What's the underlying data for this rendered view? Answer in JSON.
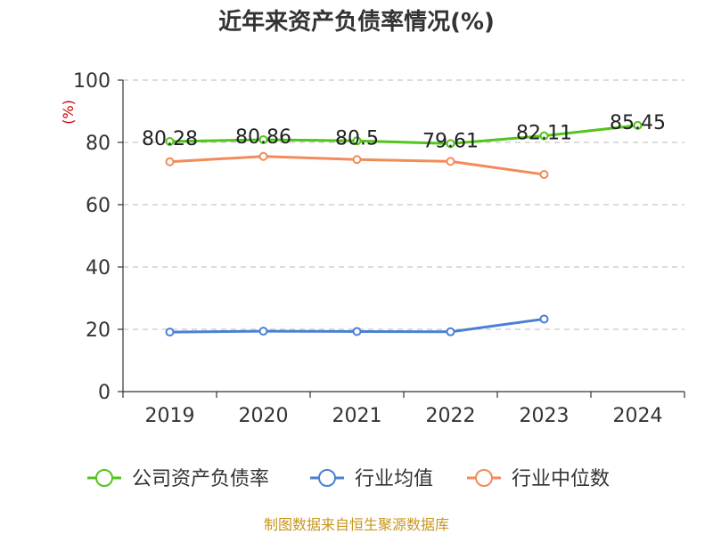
{
  "chart_data": {
    "type": "line",
    "title": "近年来资产负债率情况(%)",
    "ylabel": "(%)",
    "xlabel": "",
    "categories": [
      "2019",
      "2020",
      "2021",
      "2022",
      "2023",
      "2024"
    ],
    "ylim": [
      0,
      100
    ],
    "yticks": [
      0,
      20,
      40,
      60,
      80,
      100
    ],
    "grid": true,
    "legend_position": "bottom",
    "series": [
      {
        "name": "公司资产负债率",
        "color": "#52c41a",
        "values": [
          80.28,
          80.86,
          80.5,
          79.61,
          82.11,
          85.45
        ],
        "show_labels": true
      },
      {
        "name": "行业均值",
        "color": "#4a7fd6",
        "values": [
          19.1,
          19.4,
          19.3,
          19.2,
          23.3,
          null
        ],
        "show_labels": false
      },
      {
        "name": "行业中位数",
        "color": "#f28b5a",
        "values": [
          73.8,
          75.5,
          74.5,
          73.9,
          69.7,
          null
        ],
        "show_labels": false
      }
    ]
  },
  "source": "制图数据来自恒生聚源数据库"
}
